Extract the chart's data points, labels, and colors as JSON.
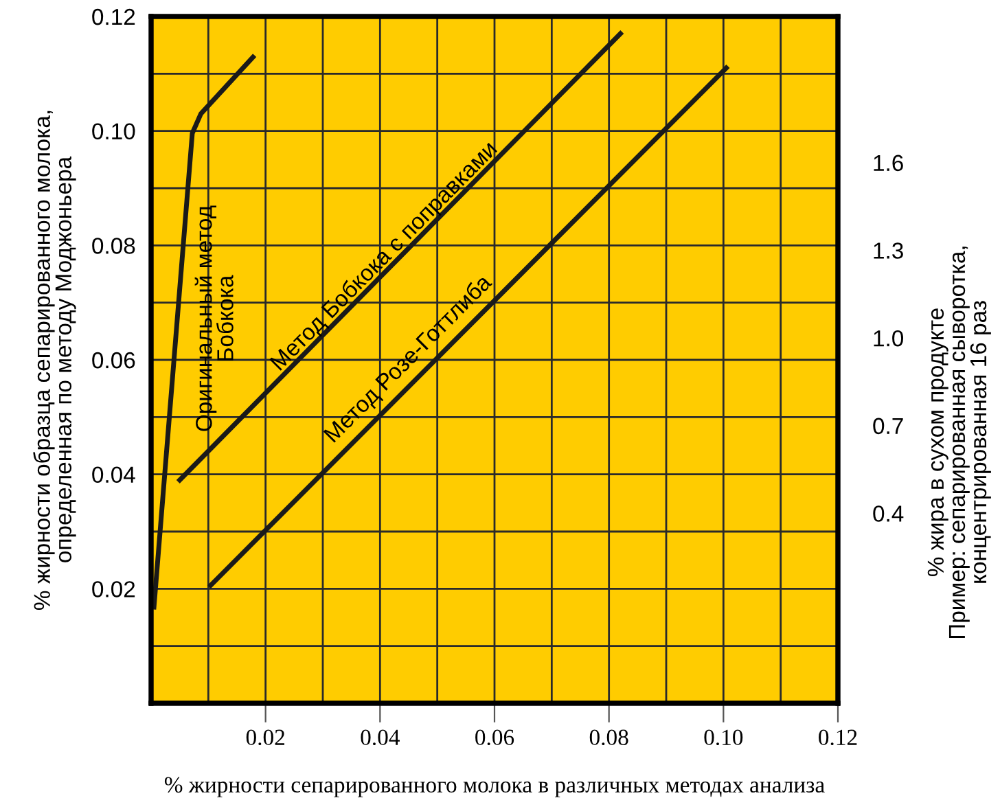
{
  "chart_data": {
    "type": "line",
    "xlabel": "% жирности сепарированного молока в различных методах анализа",
    "ylabel": "% жирности образца сепарированного молока,\nопределенная по методу Моджоньера",
    "y2label": "% жира в сухом продукте\nПример: сепарированная сыворотка,\nконцентрированная 16 раз",
    "series": [
      {
        "color": "#1a1a1a",
        "x": [
          0.0005,
          0.0072,
          0.0087,
          0.0178
        ],
        "values": [
          0.0168,
          0.0996,
          0.103,
          0.1129
        ]
      },
      {
        "color": "#1a1a1a",
        "x": [
          0.005,
          0.082
        ],
        "values": [
          0.039,
          0.117
        ]
      },
      {
        "color": "#1a1a1a",
        "x": [
          0.0104,
          0.1005
        ],
        "values": [
          0.0206,
          0.111
        ]
      }
    ],
    "annotations": [
      "Оригинальный метод\nБобкока",
      "Метод Бобкока с поправками",
      "Метод Розе-Готтлиба"
    ],
    "xlim": [
      0,
      0.12
    ],
    "xticks": [
      0.02,
      0.04,
      0.06,
      0.08,
      {
        "value": 0.1,
        "label": "0.10"
      },
      0.12
    ],
    "ylim": [
      0,
      0.12
    ],
    "yticks": [
      0.02,
      0.04,
      0.06,
      0.08,
      {
        "value": 0.1,
        "label": "0.10"
      },
      0.12
    ],
    "y2lim": [
      -0.25,
      2.1
    ],
    "y2ticks": [
      {
        "value": 0.4,
        "label": "0.4"
      },
      {
        "value": 0.7,
        "label": "0.7"
      },
      {
        "value": 1.0,
        "label": "1.0"
      },
      1.3,
      1.6
    ],
    "grid": true,
    "marker": "none",
    "line_style": "solid",
    "legend": false
  }
}
